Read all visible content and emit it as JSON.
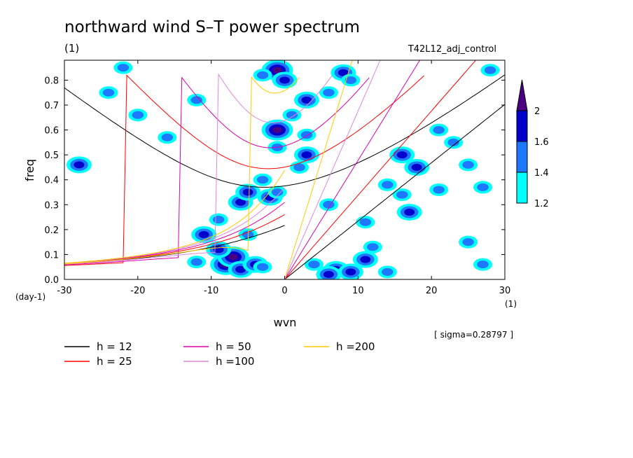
{
  "chart_data": {
    "type": "heatmap",
    "title": "northward wind S–T power spectrum",
    "units": "(1)",
    "run_label": "T42L12_adj_control",
    "xlabel": "wvn",
    "ylabel": "freq",
    "y_units": "(day-1)",
    "x_units": "(1)",
    "xlim": [
      -30,
      30
    ],
    "ylim": [
      0,
      0.88
    ],
    "x_ticks": [
      "-30",
      "-20",
      "-10",
      "0",
      "10",
      "20",
      "30"
    ],
    "x_tick_values": [
      -30,
      -20,
      -10,
      0,
      10,
      20,
      30
    ],
    "y_ticks": [
      "0.0",
      "0.1",
      "0.2",
      "0.3",
      "0.4",
      "0.5",
      "0.6",
      "0.7",
      "0.8"
    ],
    "y_tick_values": [
      0,
      0.1,
      0.2,
      0.3,
      0.4,
      0.5,
      0.6,
      0.7,
      0.8
    ],
    "sigma_note": "[ sigma=0.28797 ]",
    "colorbar": {
      "levels": [
        "1.2",
        "1.4",
        "1.6",
        "2"
      ],
      "colors": [
        "#00ffff",
        "#1e78ff",
        "#0000cd",
        "#4b0082"
      ]
    },
    "series": [
      {
        "name": "h = 12",
        "h": 12,
        "color": "#000000"
      },
      {
        "name": "h = 25",
        "h": 25,
        "color": "#ff0000"
      },
      {
        "name": "h = 50",
        "h": 50,
        "color": "#dd00aa"
      },
      {
        "name": "h =100",
        "h": 100,
        "color": "#dd88dd"
      },
      {
        "name": "h =200",
        "h": 200,
        "color": "#ffcc00"
      }
    ],
    "spectral_peaks": [
      {
        "x": -8,
        "y": 0.06,
        "level": 3
      },
      {
        "x": -7,
        "y": 0.09,
        "level": 3
      },
      {
        "x": -9,
        "y": 0.12,
        "level": 2
      },
      {
        "x": -6,
        "y": 0.04,
        "level": 2
      },
      {
        "x": -4,
        "y": 0.06,
        "level": 2
      },
      {
        "x": -3,
        "y": 0.05,
        "level": 1
      },
      {
        "x": -12,
        "y": 0.07,
        "level": 1
      },
      {
        "x": -11,
        "y": 0.18,
        "level": 2
      },
      {
        "x": -9,
        "y": 0.24,
        "level": 1
      },
      {
        "x": -5,
        "y": 0.18,
        "level": 1
      },
      {
        "x": -6,
        "y": 0.31,
        "level": 2
      },
      {
        "x": -5,
        "y": 0.35,
        "level": 2
      },
      {
        "x": -2,
        "y": 0.33,
        "level": 2
      },
      {
        "x": -3,
        "y": 0.4,
        "level": 1
      },
      {
        "x": -1,
        "y": 0.35,
        "level": 1
      },
      {
        "x": 2,
        "y": 0.45,
        "level": 1
      },
      {
        "x": 3,
        "y": 0.5,
        "level": 2
      },
      {
        "x": -1,
        "y": 0.53,
        "level": 1
      },
      {
        "x": -1,
        "y": 0.6,
        "level": 3
      },
      {
        "x": 3,
        "y": 0.58,
        "level": 1
      },
      {
        "x": 1,
        "y": 0.66,
        "level": 1
      },
      {
        "x": 3,
        "y": 0.72,
        "level": 2
      },
      {
        "x": -1,
        "y": 0.84,
        "level": 3
      },
      {
        "x": 0,
        "y": 0.8,
        "level": 2
      },
      {
        "x": -3,
        "y": 0.82,
        "level": 1
      },
      {
        "x": 8,
        "y": 0.83,
        "level": 2
      },
      {
        "x": 6,
        "y": 0.75,
        "level": 1
      },
      {
        "x": 9,
        "y": 0.8,
        "level": 1
      },
      {
        "x": 7,
        "y": 0.04,
        "level": 2
      },
      {
        "x": 9,
        "y": 0.03,
        "level": 2
      },
      {
        "x": 6,
        "y": 0.02,
        "level": 2
      },
      {
        "x": 11,
        "y": 0.08,
        "level": 2
      },
      {
        "x": 12,
        "y": 0.13,
        "level": 1
      },
      {
        "x": 4,
        "y": 0.06,
        "level": 1
      },
      {
        "x": 14,
        "y": 0.03,
        "level": 1
      },
      {
        "x": 17,
        "y": 0.27,
        "level": 2
      },
      {
        "x": 16,
        "y": 0.34,
        "level": 1
      },
      {
        "x": 21,
        "y": 0.36,
        "level": 1
      },
      {
        "x": 18,
        "y": 0.45,
        "level": 2
      },
      {
        "x": 25,
        "y": 0.46,
        "level": 1
      },
      {
        "x": 23,
        "y": 0.55,
        "level": 1
      },
      {
        "x": 16,
        "y": 0.5,
        "level": 2
      },
      {
        "x": 27,
        "y": 0.37,
        "level": 1
      },
      {
        "x": 21,
        "y": 0.6,
        "level": 1
      },
      {
        "x": 11,
        "y": 0.23,
        "level": 1
      },
      {
        "x": 14,
        "y": 0.38,
        "level": 1
      },
      {
        "x": 6,
        "y": 0.3,
        "level": 1
      },
      {
        "x": -28,
        "y": 0.46,
        "level": 2
      },
      {
        "x": -20,
        "y": 0.66,
        "level": 1
      },
      {
        "x": -24,
        "y": 0.75,
        "level": 1
      },
      {
        "x": -16,
        "y": 0.57,
        "level": 1
      },
      {
        "x": -22,
        "y": 0.85,
        "level": 1
      },
      {
        "x": -12,
        "y": 0.72,
        "level": 1
      },
      {
        "x": 25,
        "y": 0.15,
        "level": 1
      },
      {
        "x": 27,
        "y": 0.06,
        "level": 1
      },
      {
        "x": 28,
        "y": 0.84,
        "level": 1
      }
    ]
  },
  "legend_entries": [
    {
      "label": "h = 12",
      "color": "#000000"
    },
    {
      "label": "h = 25",
      "color": "#ff0000"
    },
    {
      "label": "h = 50",
      "color": "#dd00aa"
    },
    {
      "label": "h =100",
      "color": "#dd88dd"
    },
    {
      "label": "h =200",
      "color": "#ffcc00"
    }
  ]
}
